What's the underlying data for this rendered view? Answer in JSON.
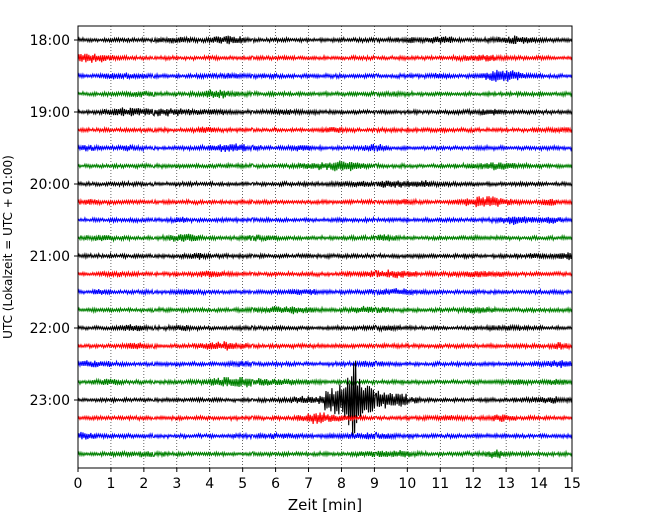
{
  "chart_data": {
    "type": "line",
    "title": "",
    "xlabel": "Zeit  [min]",
    "ylabel": "UTC (Lokalzeit = UTC + 01:00)",
    "xlim": [
      0,
      15
    ],
    "x_ticks": [
      0,
      1,
      2,
      3,
      4,
      5,
      6,
      7,
      8,
      9,
      10,
      11,
      12,
      13,
      14,
      15
    ],
    "y_ticks": [
      {
        "label": "18:00",
        "trace_index": 0
      },
      {
        "label": "19:00",
        "trace_index": 4
      },
      {
        "label": "20:00",
        "trace_index": 8
      },
      {
        "label": "21:00",
        "trace_index": 12
      },
      {
        "label": "22:00",
        "trace_index": 16
      },
      {
        "label": "23:00",
        "trace_index": 20
      }
    ],
    "grid": "vertical dotted at each minute",
    "trace_colors": [
      "#000000",
      "#ff0000",
      "#0000ff",
      "#008000"
    ],
    "trace_minutes": 15,
    "trace_count": 24,
    "traces_start": "18:00",
    "event": {
      "trace_index": 20,
      "start_min": 7.5,
      "peak_min": 8.4,
      "end_min": 10.0,
      "description_peak_amplitude_ratio": 8
    }
  }
}
